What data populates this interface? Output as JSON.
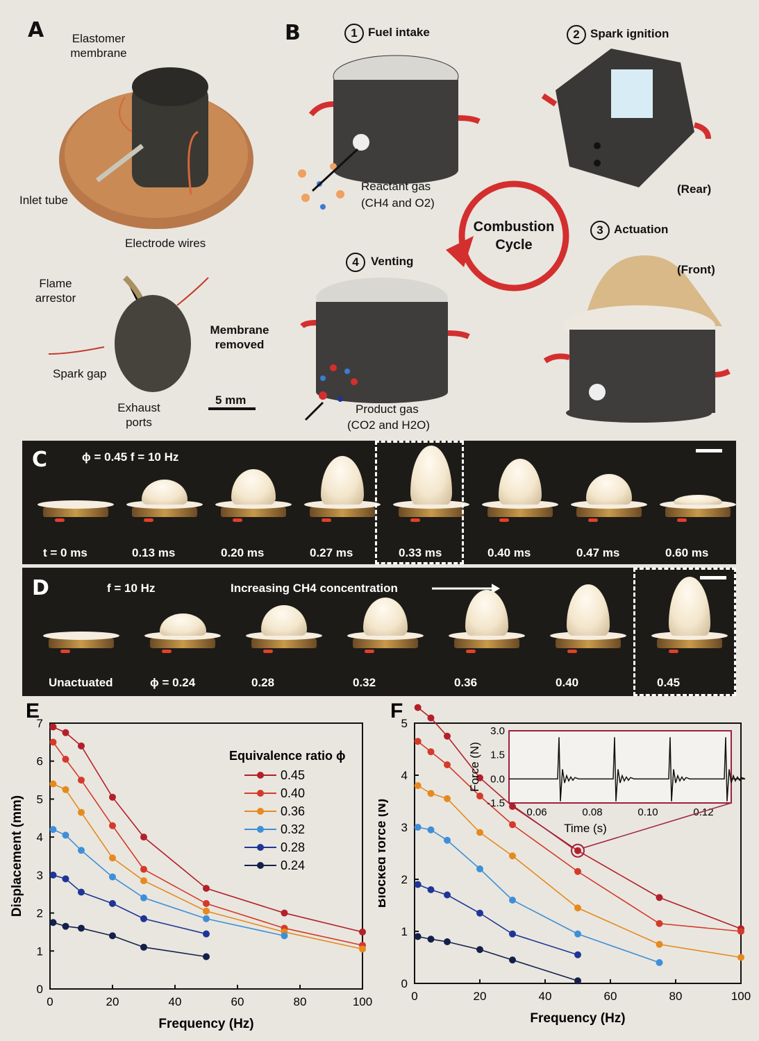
{
  "panelA": {
    "letter": "A",
    "labels": {
      "elastomer": "Elastomer membrane",
      "inlet": "Inlet tube",
      "electrodes": "Electrode wires",
      "flame_arrestor": "Flame arrestor",
      "spark_gap": "Spark gap",
      "exhaust": "Exhaust ports",
      "membrane_removed": "Membrane removed",
      "scale": "5 mm"
    }
  },
  "panelB": {
    "letter": "B",
    "step1": "Fuel intake",
    "step2": "Spark ignition",
    "step3": "Actuation",
    "step4": "Venting",
    "num1": "1",
    "num2": "2",
    "num3": "3",
    "num4": "4",
    "rear": "(Rear)",
    "front": "(Front)",
    "cycle": "Combustion Cycle",
    "reactant": "Reactant gas",
    "reactant2": "(CH4 and O2)",
    "product": "Product gas",
    "product2": "(CO2 and H2O)"
  },
  "panelC": {
    "letter": "C",
    "params": "ϕ = 0.45  f = 10 Hz",
    "frames": [
      "t = 0 ms",
      "0.13 ms",
      "0.20 ms",
      "0.27 ms",
      "0.33 ms",
      "0.40 ms",
      "0.47 ms",
      "0.60 ms"
    ],
    "heights": [
      0.0,
      0.35,
      0.55,
      0.8,
      1.0,
      0.75,
      0.45,
      0.05
    ]
  },
  "panelD": {
    "letter": "D",
    "params": "f = 10 Hz",
    "caption": "Increasing CH4 concentration",
    "frames": [
      "Unactuated",
      "ϕ = 0.24",
      "0.28",
      "0.32",
      "0.36",
      "0.40",
      "0.45"
    ],
    "heights": [
      0.0,
      0.3,
      0.45,
      0.6,
      0.75,
      0.85,
      1.0
    ]
  },
  "chart_data": [
    {
      "panel": "E",
      "type": "line",
      "xlabel": "Frequency (Hz)",
      "ylabel": "Displacement (mm)",
      "xlim": [
        0,
        100
      ],
      "ylim": [
        0,
        7
      ],
      "xticks": [
        "0",
        "20",
        "40",
        "60",
        "80",
        "100"
      ],
      "yticks": [
        "0",
        "1",
        "2",
        "3",
        "4",
        "5",
        "6",
        "7"
      ],
      "legend_title": "Equivalence ratio ϕ",
      "series": [
        {
          "name": "0.45",
          "color": "#b3202a",
          "x": [
            1,
            5,
            10,
            20,
            30,
            50,
            75,
            100
          ],
          "y": [
            6.9,
            6.75,
            6.4,
            5.05,
            4.0,
            2.65,
            2.0,
            1.5
          ]
        },
        {
          "name": "0.40",
          "color": "#d43a2a",
          "x": [
            1,
            5,
            10,
            20,
            30,
            50,
            75,
            100
          ],
          "y": [
            6.5,
            6.05,
            5.5,
            4.3,
            3.15,
            2.25,
            1.6,
            1.15
          ]
        },
        {
          "name": "0.36",
          "color": "#e58a1f",
          "x": [
            1,
            5,
            10,
            20,
            30,
            50,
            75,
            100
          ],
          "y": [
            5.4,
            5.25,
            4.65,
            3.45,
            2.85,
            2.05,
            1.5,
            1.05
          ]
        },
        {
          "name": "0.32",
          "color": "#3f8fd8",
          "x": [
            1,
            5,
            10,
            20,
            30,
            50,
            75
          ],
          "y": [
            4.2,
            4.05,
            3.65,
            2.95,
            2.4,
            1.85,
            1.4
          ]
        },
        {
          "name": "0.28",
          "color": "#1f3596",
          "x": [
            1,
            5,
            10,
            20,
            30,
            50
          ],
          "y": [
            3.0,
            2.9,
            2.55,
            2.25,
            1.85,
            1.45
          ]
        },
        {
          "name": "0.24",
          "color": "#14204a",
          "x": [
            1,
            5,
            10,
            20,
            30,
            50
          ],
          "y": [
            1.75,
            1.65,
            1.6,
            1.4,
            1.1,
            0.85
          ]
        }
      ]
    },
    {
      "panel": "F",
      "type": "line",
      "xlabel": "Frequency (Hz)",
      "ylabel": "Blocked force (N)",
      "xlim": [
        0,
        100
      ],
      "ylim": [
        0,
        5
      ],
      "xticks": [
        "0",
        "20",
        "40",
        "60",
        "80",
        "100"
      ],
      "yticks": [
        "0",
        "1",
        "2",
        "3",
        "4",
        "5"
      ],
      "series": [
        {
          "name": "0.45",
          "color": "#b3202a",
          "x": [
            1,
            5,
            10,
            20,
            30,
            50,
            75,
            100
          ],
          "y": [
            5.3,
            5.1,
            4.75,
            3.95,
            3.4,
            2.55,
            1.65,
            1.05
          ]
        },
        {
          "name": "0.40",
          "color": "#d43a2a",
          "x": [
            1,
            5,
            10,
            20,
            30,
            50,
            75,
            100
          ],
          "y": [
            4.65,
            4.45,
            4.2,
            3.6,
            3.05,
            2.15,
            1.15,
            1.0
          ]
        },
        {
          "name": "0.36",
          "color": "#e58a1f",
          "x": [
            1,
            5,
            10,
            20,
            30,
            50,
            75,
            100
          ],
          "y": [
            3.8,
            3.65,
            3.55,
            2.9,
            2.45,
            1.45,
            0.75,
            0.5
          ]
        },
        {
          "name": "0.32",
          "color": "#3f8fd8",
          "x": [
            1,
            5,
            10,
            20,
            30,
            50,
            75
          ],
          "y": [
            3.0,
            2.95,
            2.75,
            2.2,
            1.6,
            0.95,
            0.4
          ]
        },
        {
          "name": "0.28",
          "color": "#1f3596",
          "x": [
            1,
            5,
            10,
            20,
            30,
            50
          ],
          "y": [
            1.9,
            1.8,
            1.7,
            1.35,
            0.95,
            0.55
          ]
        },
        {
          "name": "0.24",
          "color": "#14204a",
          "x": [
            1,
            5,
            10,
            20,
            30,
            50
          ],
          "y": [
            0.9,
            0.85,
            0.8,
            0.65,
            0.45,
            0.05
          ]
        }
      ],
      "inset": {
        "type": "line",
        "xlabel": "Time (s)",
        "ylabel": "Force (N)",
        "xlim": [
          0.05,
          0.13
        ],
        "ylim": [
          -1.5,
          3.0
        ],
        "xticks": [
          "0.06",
          "0.08",
          "0.10",
          "0.12"
        ],
        "yticks": [
          "3.0",
          "1.5",
          "0.0",
          "-1.5"
        ],
        "peaks_x": [
          0.068,
          0.088,
          0.108,
          0.128
        ],
        "peak_y": 2.6
      }
    }
  ]
}
